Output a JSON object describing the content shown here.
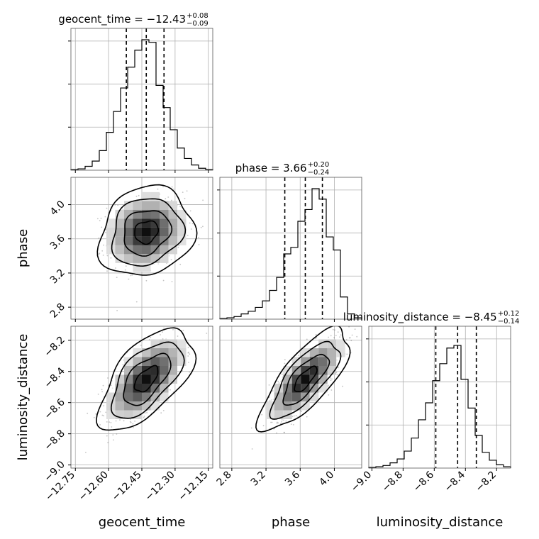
{
  "chart_data": {
    "type": "corner",
    "parameters": [
      "geocent_time",
      "phase",
      "luminosity_distance"
    ],
    "axis_labels": {
      "geocent_time": "geocent_time",
      "phase": "phase",
      "luminosity_distance": "luminosity_distance"
    },
    "ranges": {
      "geocent_time": [
        -12.77,
        -12.13
      ],
      "phase": [
        2.66,
        4.32
      ],
      "luminosity_distance": [
        -9.02,
        -8.11
      ]
    },
    "ticks": {
      "geocent_time": {
        "values": [
          -12.75,
          -12.6,
          -12.45,
          -12.3,
          -12.15
        ],
        "labels": [
          "−12.75",
          "−12.60",
          "−12.45",
          "−12.30",
          "−12.15"
        ]
      },
      "phase": {
        "values": [
          2.8,
          3.2,
          3.6,
          4.0
        ],
        "labels": [
          "2.8",
          "3.2",
          "3.6",
          "4.0"
        ]
      },
      "luminosity_distance": {
        "values": [
          -9.0,
          -8.8,
          -8.6,
          -8.4,
          -8.2
        ],
        "labels": [
          "−9.0",
          "−8.8",
          "−8.6",
          "−8.4",
          "−8.2"
        ]
      }
    },
    "titles": [
      {
        "param": "geocent_time",
        "prefix": "geocent_time = −12.43",
        "upper": "+0.08",
        "lower": "−0.09"
      },
      {
        "param": "phase",
        "prefix": "phase = 3.66",
        "upper": "+0.20",
        "lower": "−0.24"
      },
      {
        "param": "luminosity_distance",
        "prefix": "luminosity_distance = −8.45",
        "upper": "+0.12",
        "lower": "−0.14"
      }
    ],
    "quantiles": {
      "geocent_time": [
        -12.52,
        -12.43,
        -12.35
      ],
      "phase": [
        3.42,
        3.66,
        3.86
      ],
      "luminosity_distance": [
        -8.59,
        -8.45,
        -8.33
      ]
    },
    "histograms": {
      "geocent_time": [
        0.005,
        0.01,
        0.03,
        0.07,
        0.15,
        0.29,
        0.45,
        0.63,
        0.79,
        0.92,
        1.0,
        0.98,
        0.65,
        0.48,
        0.31,
        0.17,
        0.09,
        0.04,
        0.015,
        0.005
      ],
      "phase": [
        0.005,
        0.01,
        0.02,
        0.04,
        0.06,
        0.09,
        0.14,
        0.22,
        0.32,
        0.5,
        0.55,
        0.75,
        0.84,
        1.0,
        0.92,
        0.63,
        0.53,
        0.17,
        0.04,
        0.01
      ],
      "luminosity_distance": [
        0.005,
        0.01,
        0.02,
        0.04,
        0.07,
        0.13,
        0.23,
        0.37,
        0.5,
        0.67,
        0.8,
        0.92,
        0.94,
        0.68,
        0.46,
        0.25,
        0.12,
        0.06,
        0.025,
        0.01
      ]
    },
    "pairs": [
      {
        "x": "geocent_time",
        "y": "phase",
        "mean": [
          -12.43,
          3.68
        ],
        "sd": [
          0.085,
          0.21
        ],
        "rho": 0.15
      },
      {
        "x": "geocent_time",
        "y": "luminosity_distance",
        "mean": [
          -12.43,
          -8.45
        ],
        "sd": [
          0.085,
          0.13
        ],
        "rho": 0.6
      },
      {
        "x": "phase",
        "y": "luminosity_distance",
        "mean": [
          3.66,
          -8.45
        ],
        "sd": [
          0.21,
          0.13
        ],
        "rho": 0.75
      }
    ],
    "levels_sigma": [
      0.5,
      1.0,
      1.5,
      2.0
    ],
    "grid": true
  }
}
